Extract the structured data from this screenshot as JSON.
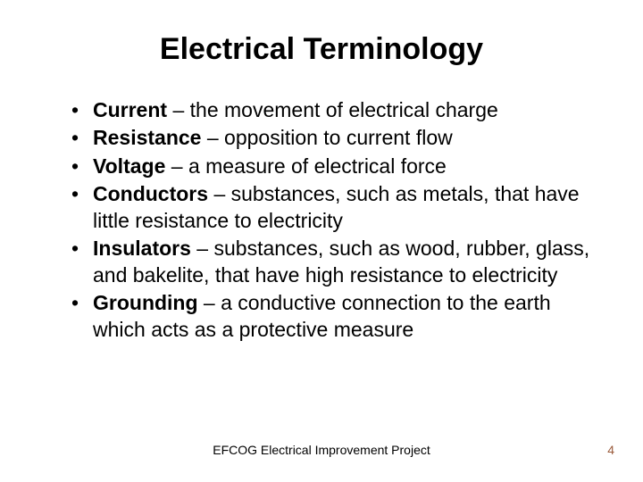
{
  "title": "Electrical Terminology",
  "title_fontsize": 34,
  "body_fontsize": 23,
  "footer_fontsize": 14,
  "pagenum_fontsize": 14,
  "text_color": "#000000",
  "pagenum_color": "#9a5a3a",
  "background_color": "#ffffff",
  "bullets": [
    {
      "term": "Current",
      "def": " – the movement of electrical charge"
    },
    {
      "term": "Resistance",
      "def": " – opposition to current flow"
    },
    {
      "term": "Voltage",
      "def": " – a measure of electrical force"
    },
    {
      "term": "Conductors",
      "def": " – substances, such as metals, that have little resistance to electricity"
    },
    {
      "term": "Insulators",
      "def": " – substances, such as wood, rubber, glass, and bakelite, that have high resistance to electricity"
    },
    {
      "term": "Grounding",
      "def": " – a conductive connection to the earth which acts as a protective measure"
    }
  ],
  "footer": "EFCOG Electrical Improvement Project",
  "page_number": "4"
}
